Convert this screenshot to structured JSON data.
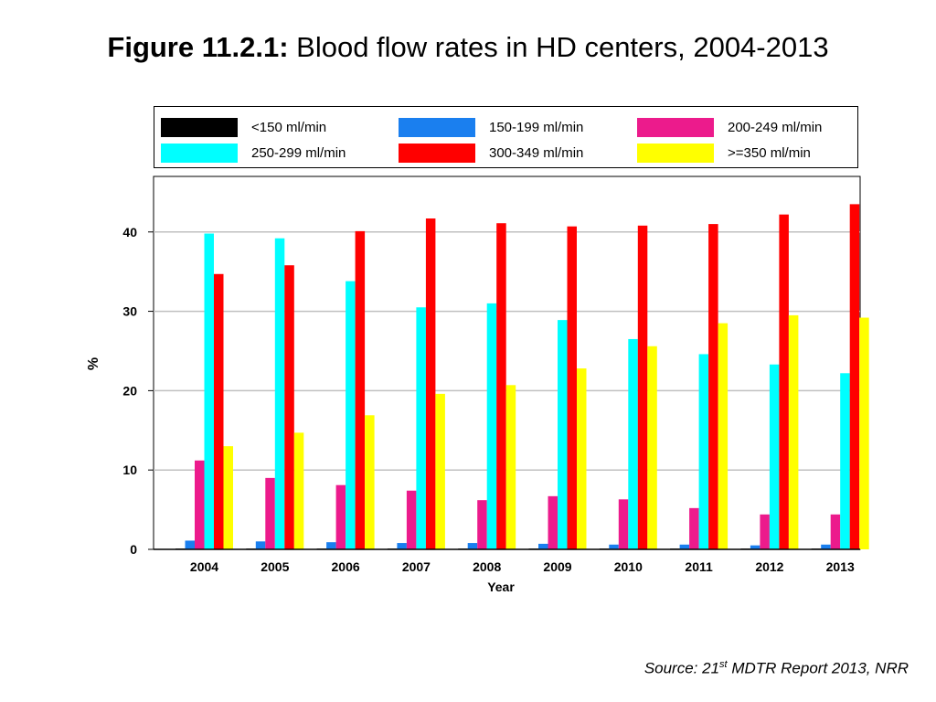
{
  "title": {
    "figure_label": "Figure 11.2.1:",
    "text": "Blood flow rates in HD centers, 2004-2013"
  },
  "source": {
    "prefix": "Source: 21",
    "superscript": "st",
    "suffix": " MDTR Report 2013, NRR"
  },
  "chart_data": {
    "type": "bar",
    "title": "",
    "xlabel": "Year",
    "ylabel": "%",
    "ylim": [
      0,
      47
    ],
    "yticks": [
      0,
      10,
      20,
      30,
      40
    ],
    "grid": "horizontal",
    "legend_position": "top",
    "categories": [
      "2004",
      "2005",
      "2006",
      "2007",
      "2008",
      "2009",
      "2010",
      "2011",
      "2012",
      "2013"
    ],
    "series": [
      {
        "name": "<150 ml/min",
        "color": "#000000",
        "values": [
          0.1,
          0.1,
          0.1,
          0.1,
          0.1,
          0.1,
          0.1,
          0.1,
          0.1,
          0.1
        ]
      },
      {
        "name": "150-199 ml/min",
        "color": "#1a7fef",
        "values": [
          1.1,
          1.0,
          0.9,
          0.8,
          0.8,
          0.7,
          0.6,
          0.6,
          0.5,
          0.6
        ]
      },
      {
        "name": "200-249 ml/min",
        "color": "#ec1b8c",
        "values": [
          11.2,
          9.0,
          8.1,
          7.4,
          6.2,
          6.7,
          6.3,
          5.2,
          4.4,
          4.4
        ]
      },
      {
        "name": "250-299 ml/min",
        "color": "#00ffff",
        "values": [
          39.8,
          39.2,
          33.8,
          30.5,
          31.0,
          28.9,
          26.5,
          24.6,
          23.3,
          22.2
        ]
      },
      {
        "name": "300-349 ml/min",
        "color": "#ff0000",
        "values": [
          34.7,
          35.8,
          40.1,
          41.7,
          41.1,
          40.7,
          40.8,
          41.0,
          42.2,
          43.5
        ]
      },
      {
        "name": ">=350 ml/min",
        "color": "#ffff00",
        "values": [
          13.0,
          14.7,
          16.9,
          19.6,
          20.7,
          22.8,
          25.6,
          28.5,
          29.5,
          29.2
        ]
      }
    ]
  }
}
